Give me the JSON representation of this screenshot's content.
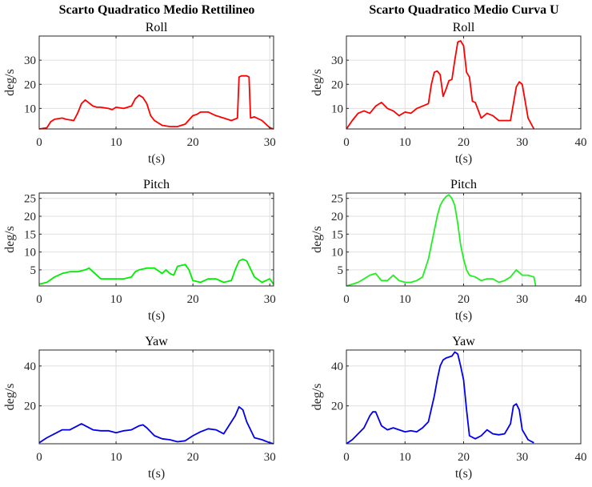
{
  "figure": {
    "left_title": "Scarto Quadratico Medio Rettilineo",
    "right_title": "Scarto Quadratico Medio Curva U"
  },
  "chart_data": [
    {
      "type": "line",
      "column": "left",
      "row": 0,
      "title": "Roll",
      "xlabel": "t(s)",
      "ylabel": "deg/s",
      "xlim": [
        0,
        30.5
      ],
      "ylim": [
        1.5,
        40
      ],
      "xticks": [
        0,
        10,
        20,
        30
      ],
      "yticks": [
        10,
        20,
        30
      ],
      "grid": true,
      "series": [
        {
          "color": "#ff0000",
          "x": [
            0,
            1,
            1.5,
            2,
            3,
            3.5,
            4.5,
            5,
            5.5,
            6,
            7,
            7.5,
            8,
            9,
            9.5,
            10,
            11,
            12,
            12.5,
            13,
            13.5,
            14,
            14.5,
            15,
            15.5,
            16,
            17,
            18,
            19,
            20,
            20.5,
            21,
            22,
            23,
            24,
            25,
            25.8,
            26,
            26.3,
            27,
            27.3,
            27.5,
            28,
            29,
            30,
            30.5
          ],
          "y": [
            1.5,
            2,
            4.5,
            5.5,
            6,
            5.5,
            5,
            8,
            12,
            13.5,
            11,
            10.5,
            10.5,
            10,
            9.5,
            10.5,
            10,
            11,
            14,
            15.5,
            14.5,
            12,
            7,
            5,
            4,
            3,
            2.5,
            2.5,
            3.5,
            7,
            7.5,
            8.5,
            8.5,
            7,
            6,
            5,
            6,
            23,
            23.5,
            23.5,
            23,
            6,
            6.5,
            5,
            2,
            1.5
          ]
        }
      ]
    },
    {
      "type": "line",
      "column": "right",
      "row": 0,
      "title": "Roll",
      "xlabel": "t(s)",
      "ylabel": "deg/s",
      "xlim": [
        0,
        40
      ],
      "ylim": [
        1.5,
        40
      ],
      "xticks": [
        0,
        10,
        20,
        30,
        40
      ],
      "yticks": [
        10,
        20,
        30
      ],
      "grid": true,
      "series": [
        {
          "color": "#ff0000",
          "x": [
            0,
            1,
            2,
            3,
            4,
            5,
            6,
            7,
            8,
            9,
            10,
            11,
            12,
            13,
            14,
            14.5,
            15,
            15.5,
            16,
            16.5,
            17,
            17.5,
            18,
            18.5,
            19,
            19.5,
            20,
            20.5,
            21,
            21.5,
            22,
            23,
            24,
            25,
            26,
            27,
            28,
            29,
            29.5,
            30,
            31,
            32
          ],
          "y": [
            1.5,
            5,
            8,
            9,
            8,
            11,
            12.5,
            10,
            9,
            7,
            8.5,
            8,
            10,
            11,
            12,
            20,
            25,
            25.5,
            24,
            15,
            18,
            21.5,
            22,
            30,
            37.5,
            38,
            36,
            25,
            23,
            13,
            12.5,
            6,
            8,
            7,
            5,
            5,
            5,
            19,
            21,
            20,
            6,
            1.5
          ]
        }
      ]
    },
    {
      "type": "line",
      "column": "left",
      "row": 1,
      "title": "Pitch",
      "xlabel": "t(s)",
      "ylabel": "deg/s",
      "xlim": [
        0,
        30.5
      ],
      "ylim": [
        0.5,
        26.5
      ],
      "xticks": [
        0,
        10,
        20,
        30
      ],
      "yticks": [
        5,
        10,
        15,
        20,
        25
      ],
      "grid": true,
      "series": [
        {
          "color": "#00ee00",
          "x": [
            0,
            1,
            2,
            3,
            4,
            5,
            6,
            6.5,
            7,
            8,
            9,
            10,
            11,
            12,
            12.5,
            13,
            14,
            15,
            16,
            16.5,
            17,
            17.5,
            18,
            19,
            19.5,
            20,
            21,
            22,
            23,
            24,
            25,
            25.5,
            26,
            26.5,
            27,
            28,
            29,
            30,
            30.5
          ],
          "y": [
            1,
            1.5,
            3,
            4,
            4.5,
            4.5,
            5,
            5.5,
            4.5,
            2.5,
            2.5,
            2.5,
            2.5,
            3,
            4.5,
            5,
            5.5,
            5.5,
            4,
            5,
            4,
            3.5,
            6,
            6.5,
            5,
            2,
            1.5,
            2.5,
            2.5,
            1.5,
            2,
            5,
            7.5,
            8,
            7.5,
            3,
            1.5,
            2.5,
            1
          ]
        }
      ]
    },
    {
      "type": "line",
      "column": "right",
      "row": 1,
      "title": "Pitch",
      "xlabel": "t(s)",
      "ylabel": "deg/s",
      "xlim": [
        0,
        40
      ],
      "ylim": [
        0.5,
        26.5
      ],
      "xticks": [
        0,
        10,
        20,
        30,
        40
      ],
      "yticks": [
        5,
        10,
        15,
        20,
        25
      ],
      "grid": true,
      "series": [
        {
          "color": "#22ee22",
          "x": [
            0,
            1,
            2,
            3,
            4,
            5,
            6,
            7,
            8,
            9,
            10,
            11,
            12,
            13,
            14,
            14.5,
            15,
            15.5,
            16,
            16.5,
            17,
            17.5,
            18,
            18.5,
            19,
            19.5,
            20,
            20.5,
            21,
            22,
            23,
            24,
            25,
            26,
            27,
            28,
            29,
            30,
            31,
            32,
            32.3
          ],
          "y": [
            0.5,
            1,
            1.5,
            2.5,
            3.5,
            4,
            2,
            2,
            3.5,
            2,
            1.5,
            1.5,
            2,
            3,
            8,
            12,
            16,
            20,
            23,
            24.5,
            25.5,
            26,
            25,
            23,
            18,
            12,
            8,
            5,
            3.5,
            3,
            2,
            2.5,
            2.5,
            1.5,
            2,
            3,
            5,
            3.5,
            3.5,
            3,
            0.5
          ]
        }
      ]
    },
    {
      "type": "line",
      "column": "left",
      "row": 2,
      "title": "Yaw",
      "xlabel": "t(s)",
      "ylabel": "deg/s",
      "xlim": [
        0,
        30.5
      ],
      "ylim": [
        1,
        48
      ],
      "xticks": [
        0,
        10,
        20,
        30
      ],
      "yticks": [
        20,
        40
      ],
      "grid": true,
      "series": [
        {
          "color": "#0000ee",
          "x": [
            0,
            1,
            2,
            3,
            4,
            5,
            5.5,
            6,
            7,
            8,
            9,
            10,
            11,
            12,
            13,
            13.5,
            14,
            15,
            16,
            17,
            18,
            19,
            20,
            21,
            22,
            23,
            24,
            25,
            25.5,
            26,
            26.5,
            27,
            28,
            29,
            30,
            30.5
          ],
          "y": [
            1.5,
            4,
            6,
            8,
            8,
            10,
            11,
            10,
            8,
            7.5,
            7.5,
            6.5,
            7.5,
            8,
            10,
            10.5,
            9,
            5,
            3.5,
            3,
            2,
            2.5,
            5,
            7,
            8.5,
            8,
            6,
            12,
            15,
            19.5,
            18,
            12,
            4,
            3,
            1.5,
            1
          ]
        }
      ]
    },
    {
      "type": "line",
      "column": "right",
      "row": 2,
      "title": "Yaw",
      "xlabel": "t(s)",
      "ylabel": "deg/s",
      "xlim": [
        0,
        40
      ],
      "ylim": [
        1,
        48
      ],
      "xticks": [
        0,
        10,
        20,
        30,
        40
      ],
      "yticks": [
        20,
        40
      ],
      "grid": true,
      "series": [
        {
          "color": "#0000ee",
          "x": [
            0,
            1,
            2,
            3,
            4,
            4.5,
            5,
            6,
            7,
            8,
            9,
            10,
            11,
            12,
            13,
            14,
            15,
            15.5,
            16,
            16.5,
            17,
            18,
            18.5,
            19,
            19.5,
            20,
            20.5,
            21,
            22,
            23,
            24,
            25,
            26,
            27,
            28,
            28.5,
            29,
            29.5,
            30,
            31,
            32
          ],
          "y": [
            1,
            3,
            6,
            9,
            15,
            17,
            17,
            10,
            8,
            9,
            8,
            7,
            7.5,
            7,
            9,
            12,
            25,
            33,
            40,
            43,
            44,
            45,
            47,
            46,
            40,
            33,
            18,
            5,
            3.5,
            5,
            8,
            6,
            5.5,
            6,
            11,
            20,
            21,
            18,
            8,
            3,
            1.5
          ]
        }
      ]
    }
  ]
}
